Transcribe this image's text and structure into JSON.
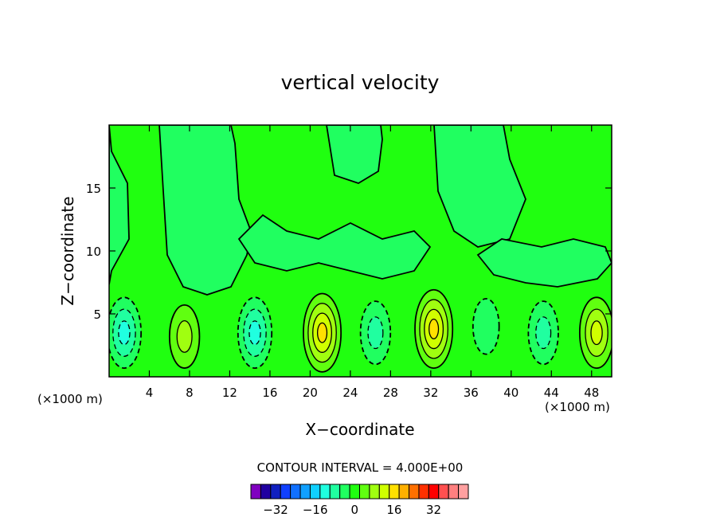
{
  "chart_data": {
    "type": "heatmap",
    "title": "vertical velocity",
    "xlabel": "X−coordinate",
    "ylabel": "Z−coordinate",
    "x_unit_left": "(×1000 m)",
    "x_unit_right": "(×1000 m)",
    "xlim": [
      0,
      50
    ],
    "ylim": [
      0,
      20
    ],
    "x_ticks": [
      4,
      8,
      12,
      16,
      20,
      24,
      28,
      32,
      36,
      40,
      44,
      48
    ],
    "y_ticks": [
      5,
      10,
      15
    ],
    "grid": false,
    "contour_interval_label": "CONTOUR INTERVAL = 4.000E+00",
    "contour_interval": 4,
    "colorbar": {
      "levels": [
        -36,
        -32,
        -28,
        -24,
        -20,
        -16,
        -12,
        -8,
        -4,
        0,
        4,
        8,
        12,
        16,
        20,
        24,
        28,
        32,
        36
      ],
      "tick_labels": [
        "−32",
        "−16",
        "0",
        "16",
        "32"
      ],
      "tick_values": [
        -32,
        -16,
        0,
        16,
        32
      ],
      "colors": [
        "#8000c0",
        "#2000a0",
        "#1020c0",
        "#1040ff",
        "#1070ff",
        "#10a0ff",
        "#10d0ff",
        "#20ffe0",
        "#20ffa0",
        "#20ff60",
        "#20ff10",
        "#60ff10",
        "#a0ff10",
        "#d0ff00",
        "#ffe000",
        "#ffb000",
        "#ff7000",
        "#ff3000",
        "#ff0000",
        "#ff5050",
        "#ff8080",
        "#ffa0a0"
      ]
    },
    "background_value": 0,
    "cells": [
      {
        "x": 1.5,
        "z": 3.5,
        "value": -12
      },
      {
        "x": 7.5,
        "z": 3.2,
        "value": 8
      },
      {
        "x": 14.5,
        "z": 3.5,
        "value": -12
      },
      {
        "x": 21.2,
        "z": 3.5,
        "value": 16
      },
      {
        "x": 26.5,
        "z": 3.5,
        "value": -8
      },
      {
        "x": 32.3,
        "z": 3.8,
        "value": 16
      },
      {
        "x": 37.5,
        "z": 4.0,
        "value": -4
      },
      {
        "x": 43.2,
        "z": 3.5,
        "value": -8
      },
      {
        "x": 48.5,
        "z": 3.5,
        "value": 12
      }
    ]
  }
}
